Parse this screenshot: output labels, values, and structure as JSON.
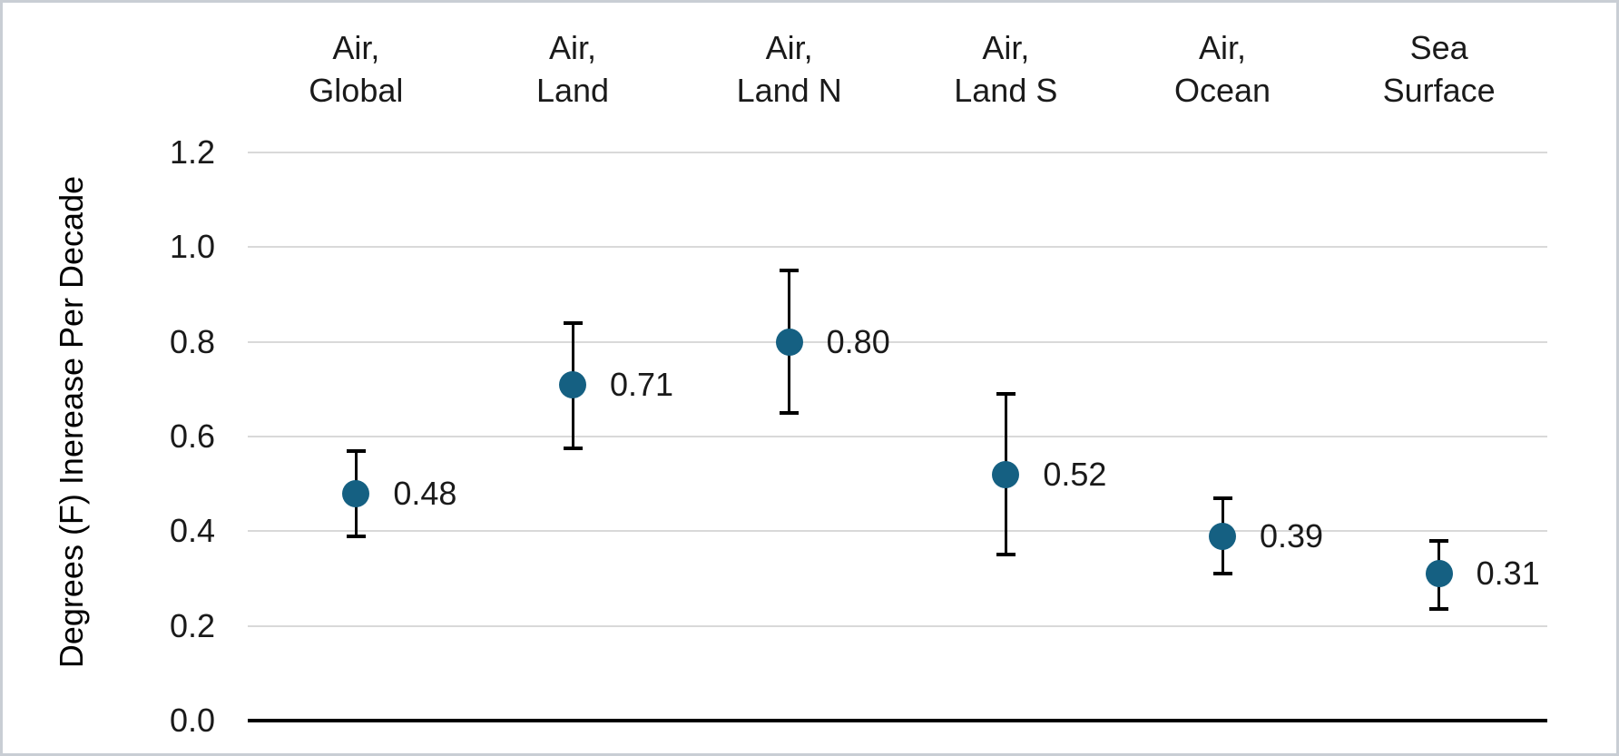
{
  "chart_data": {
    "type": "scatter",
    "title": "",
    "ylabel": "Degrees (F) Inerease Per Decade",
    "xlabel": "",
    "categories": [
      "Air, Global",
      "Air, Land",
      "Air, Land N",
      "Air, Land S",
      "Air, Ocean",
      "Sea Surface"
    ],
    "category_lines": [
      [
        "Air,",
        "Global"
      ],
      [
        "Air,",
        "Land"
      ],
      [
        "Air,",
        "Land N"
      ],
      [
        "Air,",
        "Land S"
      ],
      [
        "Air,",
        "Ocean"
      ],
      [
        "Sea",
        "Surface"
      ]
    ],
    "values": [
      0.48,
      0.71,
      0.8,
      0.52,
      0.39,
      0.31
    ],
    "value_labels": [
      "0.48",
      "0.71",
      "0.80",
      "0.52",
      "0.39",
      "0.31"
    ],
    "error_low": [
      0.39,
      0.575,
      0.65,
      0.35,
      0.31,
      0.235
    ],
    "error_high": [
      0.57,
      0.84,
      0.95,
      0.69,
      0.47,
      0.38
    ],
    "yticks": [
      "0.0",
      "0.2",
      "0.4",
      "0.6",
      "0.8",
      "1.0",
      "1.2"
    ],
    "ylim": [
      0,
      1.2
    ],
    "grid": true,
    "legend": "none",
    "colors": {
      "marker": "#156082",
      "error_bar": "#000000",
      "gridline": "#d9d9d9",
      "axis": "#000000",
      "text": "#1a1a1a",
      "background": "#ffffff"
    }
  }
}
